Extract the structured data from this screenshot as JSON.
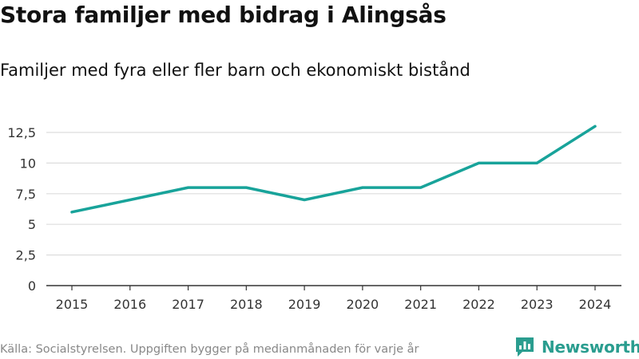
{
  "header": {
    "title": "Stora familjer med bidrag i Alingsås",
    "subtitle": "Familjer med fyra eller fler barn och ekonomiskt bistånd"
  },
  "chart_data": {
    "type": "line",
    "x": [
      2015,
      2016,
      2017,
      2018,
      2019,
      2020,
      2021,
      2022,
      2023,
      2024
    ],
    "series": [
      {
        "name": "Familjer",
        "values": [
          6,
          7,
          8,
          8,
          7,
          8,
          8,
          10,
          10,
          13
        ]
      }
    ],
    "yticks": [
      0,
      2.5,
      5,
      7.5,
      10,
      12.5
    ],
    "ytick_labels": [
      "0",
      "2,5",
      "5",
      "7,5",
      "10",
      "12,5"
    ],
    "ylim": [
      0,
      14
    ],
    "xlabel": "",
    "ylabel": "",
    "grid": true,
    "line_color": "#18a39a"
  },
  "footer": {
    "source": "Källa: Socialstyrelsen. Uppgiften bygger på medianmånaden för varje år",
    "brand": "Newsworthy",
    "brand_color": "#2a9d8f"
  }
}
